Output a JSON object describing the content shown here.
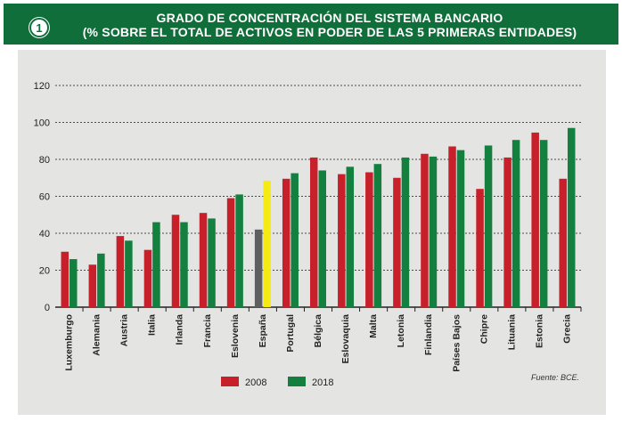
{
  "header": {
    "badge": "1",
    "title_line1": "GRADO DE CONCENTRACIÓN DEL SISTEMA BANCARIO",
    "title_line2": "(% SOBRE EL TOTAL DE ACTIVOS EN PODER DE LAS 5 PRIMERAS ENTIDADES)"
  },
  "source": "Fuente: BCE.",
  "colors": {
    "header_bg": "#0f6e3a",
    "panel_bg": "#e4e4e2",
    "series_2008": "#c8202a",
    "series_2018": "#138040",
    "espana_2008": "#5f5f5f",
    "espana_2018": "#f5ea14"
  },
  "chart_data": {
    "type": "bar",
    "title": "GRADO DE CONCENTRACIÓN DEL SISTEMA BANCARIO",
    "subtitle": "(% SOBRE EL TOTAL DE ACTIVOS EN PODER DE LAS 5 PRIMERAS ENTIDADES)",
    "xlabel": "",
    "ylabel": "",
    "ylim": [
      0,
      120
    ],
    "yticks": [
      0,
      20,
      40,
      60,
      80,
      100,
      120
    ],
    "grid": true,
    "legend_position": "bottom-center",
    "highlight_category": "España",
    "categories": [
      "Luxemburgo",
      "Alemania",
      "Austria",
      "Italia",
      "Irlanda",
      "Francia",
      "Eslovenia",
      "España",
      "Portugal",
      "Bélgica",
      "Eslovaquia",
      "Malta",
      "Letonia",
      "Finlandia",
      "Países Bajos",
      "Chipre",
      "Lituania",
      "Estonia",
      "Grecia"
    ],
    "series": [
      {
        "name": "2008",
        "color": "#c8202a",
        "values": [
          30,
          23,
          38.5,
          31,
          50,
          51,
          59,
          42,
          69.5,
          81,
          72,
          73,
          70,
          83,
          87,
          64,
          81,
          94.5,
          69.5
        ]
      },
      {
        "name": "2018",
        "color": "#138040",
        "values": [
          26,
          29,
          36,
          46,
          46,
          48,
          61,
          68.5,
          72.5,
          74,
          76,
          77.5,
          81,
          81.5,
          85,
          87.5,
          90.5,
          90.5,
          97
        ]
      }
    ]
  }
}
